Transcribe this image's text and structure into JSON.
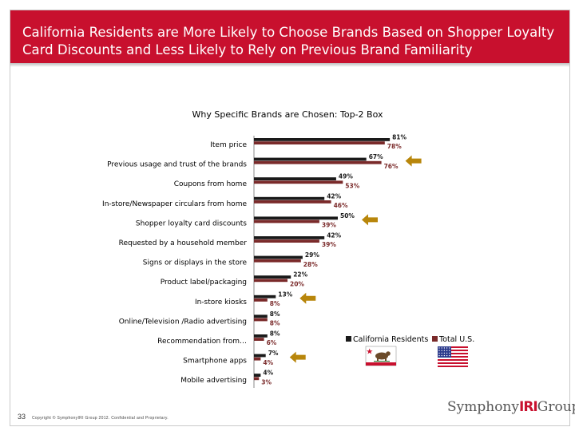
{
  "slide": {
    "title": "California Residents are More Likely to Choose Brands Based on Shopper Loyalty Card Discounts and Less Likely to Rely on Previous Brand Familiarity",
    "page_number": "33",
    "copyright": "Copyright © SymphonyIRI Group 2012. Confidential and Proprietary.",
    "logo": {
      "part1": "Symphony",
      "part2": "IRI",
      "part3": "Group"
    },
    "colors": {
      "title_bar": "#c8102e",
      "california": "#1a1a1a",
      "total_us": "#7a2a2a",
      "arrow": "#b8860b"
    }
  },
  "chart_data": {
    "type": "bar",
    "orientation": "horizontal",
    "title": "Why Specific Brands are Chosen:  Top-2 Box",
    "categories": [
      "Item price",
      "Previous usage and trust of the brands",
      "Coupons from home",
      "In-store/Newspaper circulars from home",
      "Shopper loyalty card discounts",
      "Requested by a household member",
      "Signs or displays in the store",
      "Product label/packaging",
      "In-store kiosks",
      "Online/Television /Radio advertising",
      "Recommendation from…",
      "Smartphone apps",
      "Mobile advertising"
    ],
    "series": [
      {
        "name": "California Residents",
        "values": [
          81,
          67,
          49,
          42,
          50,
          42,
          29,
          22,
          13,
          8,
          8,
          7,
          4
        ],
        "labels": [
          "81%",
          "67%",
          "49%",
          "42%",
          "50%",
          "42%",
          "29%",
          "22%",
          "13%",
          "8%",
          "8%",
          "7%",
          "4%"
        ]
      },
      {
        "name": "Total U.S.",
        "values": [
          78,
          76,
          53,
          46,
          39,
          39,
          28,
          20,
          8,
          8,
          6,
          4,
          3
        ],
        "labels": [
          "78%",
          "76%",
          "53%",
          "46%",
          "39%",
          "39%",
          "28%",
          "20%",
          "8%",
          "8%",
          "6%",
          "4%",
          "3%"
        ]
      }
    ],
    "xlim": [
      0,
      100
    ],
    "grid": false,
    "legend": "bottom-right",
    "highlighted_categories": [
      "Previous usage and trust of the brands",
      "Shopper loyalty card discounts",
      "In-store kiosks",
      "Smartphone apps"
    ]
  }
}
